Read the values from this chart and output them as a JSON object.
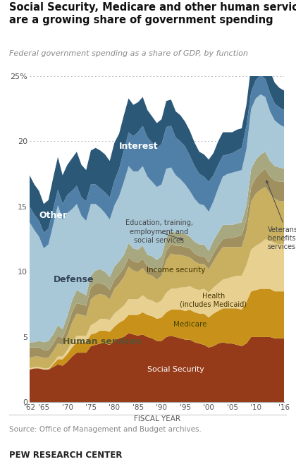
{
  "title": "Social Security, Medicare and other human services\nare a growing share of government spending",
  "subtitle": "Federal government spending as a share of GDP, by function",
  "source": "Source: Office of Management and Budget archives.",
  "credit": "PEW RESEARCH CENTER",
  "xlabel": "FISCAL YEAR",
  "years": [
    1962,
    1963,
    1964,
    1965,
    1966,
    1967,
    1968,
    1969,
    1970,
    1971,
    1972,
    1973,
    1974,
    1975,
    1976,
    1977,
    1978,
    1979,
    1980,
    1981,
    1982,
    1983,
    1984,
    1985,
    1986,
    1987,
    1988,
    1989,
    1990,
    1991,
    1992,
    1993,
    1994,
    1995,
    1996,
    1997,
    1998,
    1999,
    2000,
    2001,
    2002,
    2003,
    2004,
    2005,
    2006,
    2007,
    2008,
    2009,
    2010,
    2011,
    2012,
    2013,
    2014,
    2015,
    2016
  ],
  "social_security": [
    2.5,
    2.6,
    2.6,
    2.5,
    2.5,
    2.7,
    2.9,
    2.8,
    3.1,
    3.5,
    3.8,
    3.8,
    3.8,
    4.3,
    4.4,
    4.5,
    4.5,
    4.4,
    4.7,
    4.9,
    5.0,
    5.3,
    5.2,
    5.1,
    5.2,
    5.0,
    4.9,
    4.7,
    4.7,
    5.0,
    5.1,
    5.0,
    4.9,
    4.8,
    4.8,
    4.6,
    4.5,
    4.4,
    4.2,
    4.3,
    4.5,
    4.6,
    4.5,
    4.5,
    4.4,
    4.3,
    4.5,
    5.0,
    5.0,
    5.0,
    5.0,
    5.0,
    4.9,
    4.9,
    4.9
  ],
  "medicare": [
    0.0,
    0.0,
    0.0,
    0.0,
    0.0,
    0.2,
    0.4,
    0.5,
    0.6,
    0.7,
    0.8,
    0.8,
    0.8,
    0.9,
    0.9,
    1.0,
    1.0,
    1.0,
    1.1,
    1.2,
    1.3,
    1.4,
    1.5,
    1.6,
    1.7,
    1.7,
    1.7,
    1.7,
    1.8,
    1.9,
    2.0,
    2.1,
    2.2,
    2.2,
    2.3,
    2.3,
    2.3,
    2.4,
    2.3,
    2.5,
    2.5,
    2.6,
    2.7,
    2.7,
    2.8,
    2.8,
    3.2,
    3.5,
    3.6,
    3.7,
    3.7,
    3.7,
    3.6,
    3.6,
    3.6
  ],
  "health": [
    0.1,
    0.1,
    0.1,
    0.1,
    0.1,
    0.1,
    0.2,
    0.2,
    0.3,
    0.4,
    0.5,
    0.5,
    0.5,
    0.7,
    0.8,
    0.9,
    0.9,
    0.9,
    1.0,
    1.0,
    1.1,
    1.2,
    1.2,
    1.2,
    1.3,
    1.2,
    1.2,
    1.2,
    1.3,
    1.5,
    1.6,
    1.6,
    1.7,
    1.8,
    1.8,
    1.8,
    1.8,
    1.9,
    1.9,
    2.0,
    2.1,
    2.2,
    2.3,
    2.4,
    2.5,
    2.6,
    2.8,
    3.2,
    3.4,
    3.5,
    3.8,
    3.7,
    3.7,
    3.6,
    3.7
  ],
  "income_security": [
    0.8,
    0.8,
    0.8,
    0.8,
    0.8,
    0.9,
    1.0,
    0.9,
    1.1,
    1.5,
    1.7,
    1.6,
    1.5,
    2.0,
    2.1,
    1.9,
    1.8,
    1.6,
    1.9,
    2.0,
    2.2,
    2.5,
    2.2,
    2.1,
    2.1,
    1.9,
    1.9,
    1.8,
    1.9,
    2.5,
    2.7,
    2.6,
    2.5,
    2.4,
    2.2,
    2.1,
    2.0,
    1.9,
    1.8,
    2.0,
    2.3,
    2.5,
    2.4,
    2.3,
    2.2,
    2.2,
    2.6,
    3.7,
    4.0,
    4.1,
    4.0,
    3.6,
    3.4,
    3.3,
    3.2
  ],
  "veterans": [
    0.8,
    0.7,
    0.7,
    0.6,
    0.6,
    0.6,
    0.6,
    0.5,
    0.7,
    0.8,
    0.8,
    0.8,
    0.8,
    0.9,
    0.9,
    0.8,
    0.8,
    0.7,
    0.7,
    0.7,
    0.7,
    0.7,
    0.7,
    0.7,
    0.7,
    0.6,
    0.6,
    0.6,
    0.6,
    0.7,
    0.7,
    0.7,
    0.7,
    0.7,
    0.7,
    0.6,
    0.6,
    0.6,
    0.5,
    0.6,
    0.6,
    0.6,
    0.7,
    0.7,
    0.8,
    0.9,
    0.9,
    1.1,
    1.2,
    1.3,
    1.4,
    1.3,
    1.4,
    1.5,
    1.5
  ],
  "education": [
    0.4,
    0.4,
    0.5,
    0.6,
    0.7,
    0.7,
    0.8,
    0.7,
    0.8,
    0.9,
    1.0,
    0.9,
    0.8,
    0.9,
    1.0,
    1.1,
    1.0,
    1.0,
    1.0,
    1.0,
    1.0,
    1.1,
    1.0,
    1.0,
    1.0,
    0.9,
    0.9,
    0.9,
    0.9,
    1.0,
    1.0,
    1.0,
    1.0,
    1.0,
    0.9,
    0.9,
    0.9,
    0.9,
    0.9,
    1.0,
    1.0,
    1.1,
    1.0,
    1.0,
    1.0,
    1.0,
    1.1,
    1.4,
    1.4,
    1.4,
    1.3,
    1.2,
    1.1,
    1.1,
    1.0
  ],
  "defense": [
    9.2,
    8.6,
    8.0,
    7.2,
    7.4,
    8.4,
    9.2,
    8.4,
    7.9,
    7.0,
    6.6,
    5.9,
    5.7,
    5.5,
    5.1,
    4.7,
    4.5,
    4.4,
    4.7,
    5.0,
    5.6,
    5.9,
    5.9,
    6.0,
    6.1,
    6.0,
    5.7,
    5.6,
    5.5,
    5.3,
    4.9,
    4.4,
    4.1,
    3.8,
    3.5,
    3.3,
    3.1,
    3.0,
    3.0,
    3.0,
    3.4,
    3.7,
    3.9,
    4.0,
    4.0,
    4.0,
    4.3,
    4.6,
    4.7,
    4.6,
    4.2,
    3.8,
    3.5,
    3.3,
    3.2
  ],
  "interest": [
    1.2,
    1.2,
    1.2,
    1.2,
    1.2,
    1.2,
    1.2,
    1.2,
    1.4,
    1.4,
    1.4,
    1.4,
    1.5,
    1.5,
    1.5,
    1.5,
    1.6,
    1.7,
    1.9,
    2.1,
    2.4,
    2.6,
    2.7,
    3.0,
    3.1,
    3.0,
    3.0,
    3.0,
    3.1,
    3.2,
    3.2,
    2.9,
    2.9,
    2.9,
    2.7,
    2.5,
    2.3,
    2.2,
    2.3,
    2.0,
    1.8,
    1.6,
    1.5,
    1.5,
    1.6,
    1.7,
    1.8,
    1.3,
    1.4,
    1.5,
    1.4,
    1.4,
    1.3,
    1.3,
    1.3
  ],
  "other": [
    2.4,
    2.3,
    2.3,
    2.2,
    2.2,
    2.4,
    2.5,
    2.2,
    2.3,
    2.5,
    2.6,
    2.5,
    2.4,
    2.6,
    2.8,
    2.9,
    2.9,
    2.8,
    2.9,
    2.7,
    2.7,
    2.6,
    2.4,
    2.3,
    2.2,
    2.1,
    2.0,
    1.9,
    1.9,
    2.0,
    2.0,
    2.0,
    2.0,
    1.9,
    1.9,
    1.8,
    1.7,
    1.7,
    1.7,
    1.7,
    1.8,
    1.8,
    1.7,
    1.6,
    1.6,
    1.5,
    1.6,
    2.0,
    2.1,
    2.0,
    1.8,
    1.7,
    1.6,
    1.5,
    1.5
  ],
  "colors": {
    "social_security": "#963B1A",
    "medicare": "#C8921A",
    "health": "#E8D090",
    "income_security": "#C8B060",
    "veterans": "#A09060",
    "education": "#A8A880",
    "defense": "#A8C8D8",
    "interest": "#5080A8",
    "other": "#2C5878"
  },
  "bg_color": "#FFFFFF",
  "grid_color": "#CCCCCC",
  "ylim": [
    0,
    25
  ],
  "yticks": [
    0,
    5,
    10,
    15,
    20,
    25
  ],
  "xtick_years": [
    1962,
    1965,
    1970,
    1975,
    1980,
    1985,
    1990,
    1995,
    2000,
    2005,
    2010,
    2016
  ],
  "xtick_labels": [
    "'62",
    "'65",
    "'70",
    "'75",
    "'80",
    "'85",
    "'90",
    "'95",
    "'00",
    "'05",
    "'10",
    "'16"
  ]
}
